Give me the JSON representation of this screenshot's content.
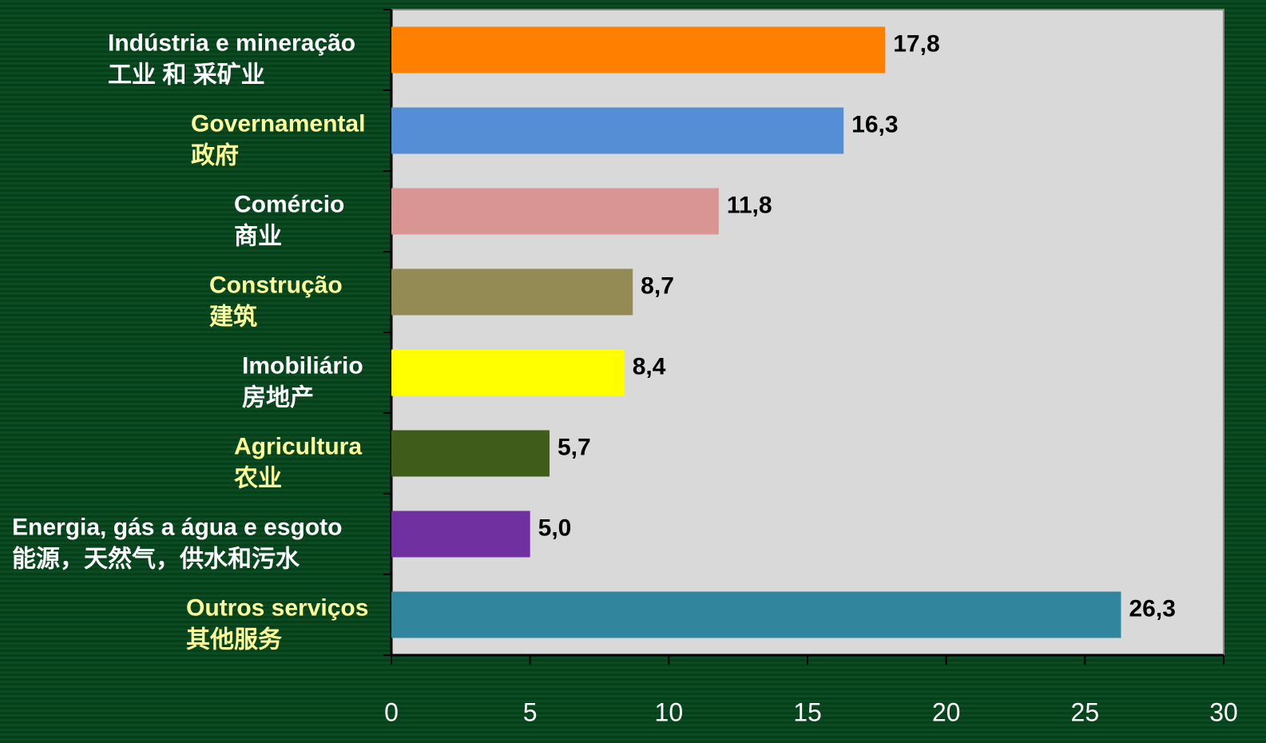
{
  "chart_data": {
    "type": "bar",
    "orientation": "horizontal",
    "categories": [
      [
        "Indústria e mineração",
        "工业 和 采矿业"
      ],
      [
        "Governamental",
        "政府"
      ],
      [
        "Comércio",
        "商业"
      ],
      [
        "Construção",
        "建筑"
      ],
      [
        "Imobiliário",
        "房地产"
      ],
      [
        "Agricultura",
        "农业"
      ],
      [
        "Energia, gás a água e esgoto",
        "能源，天然气，供水和污水"
      ],
      [
        "Outros serviços",
        "其他服务"
      ]
    ],
    "values": [
      17.8,
      16.3,
      11.8,
      8.7,
      8.4,
      5.7,
      5.0,
      26.3
    ],
    "value_labels": [
      "17,8",
      "16,3",
      "11,8",
      "8,7",
      "8,4",
      "5,7",
      "5,0",
      "26,3"
    ],
    "colors": [
      "#ff8000",
      "#558ed5",
      "#d99594",
      "#948a54",
      "#ffff00",
      "#3f5c1a",
      "#7030a0",
      "#31859c"
    ],
    "label_colors": [
      "#ffffff",
      "#ffff99",
      "#ffffff",
      "#ffff99",
      "#ffffff",
      "#ffff99",
      "#ffffff",
      "#ffff99"
    ],
    "xlim": [
      0,
      30
    ],
    "xticks": [
      0,
      5,
      10,
      15,
      20,
      25,
      30
    ]
  }
}
